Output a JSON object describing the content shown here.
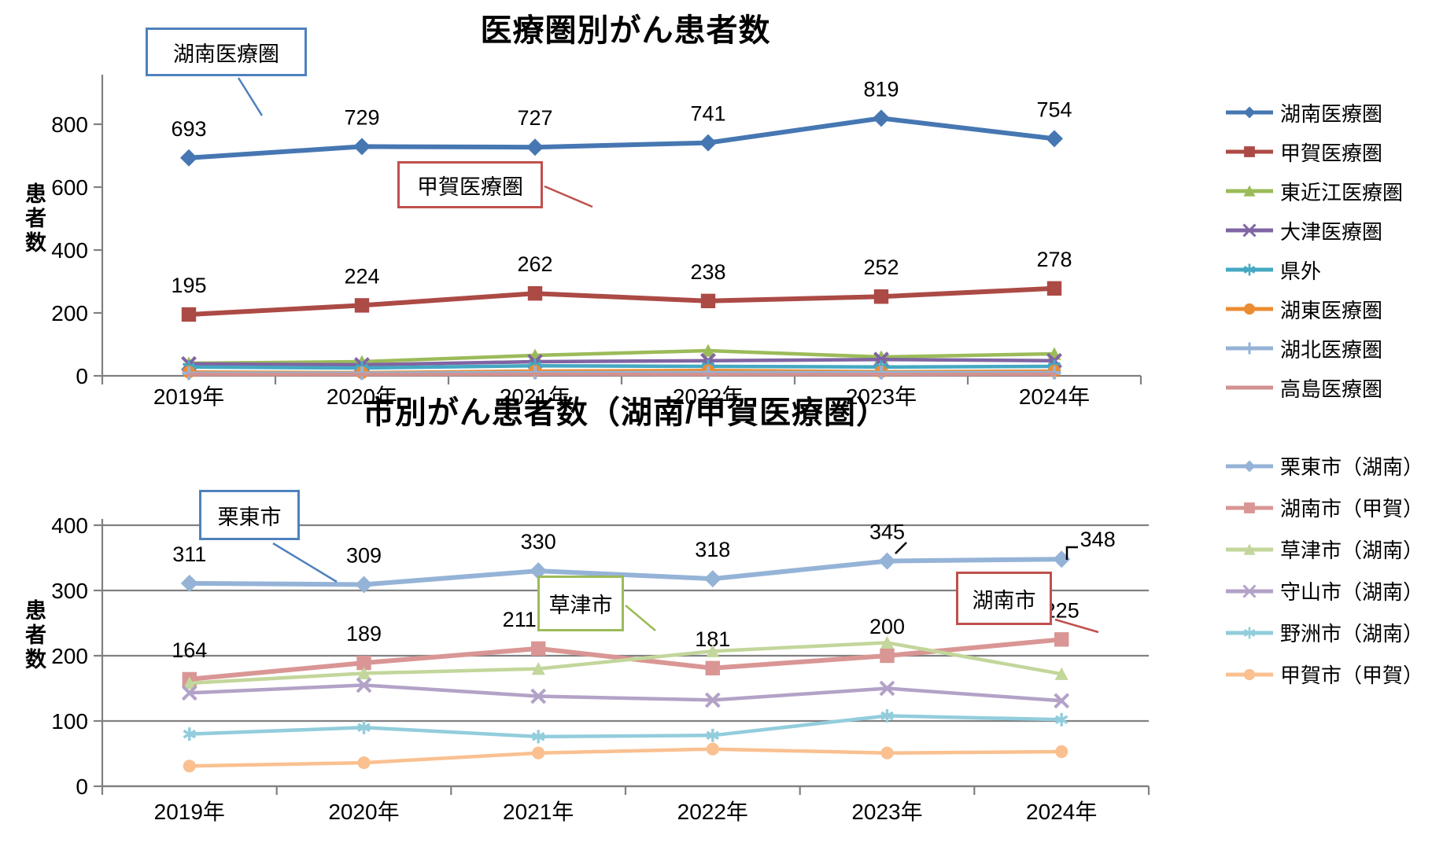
{
  "charts": [
    {
      "title": "医療圏別がん患者数",
      "y_axis_title": "患者数",
      "chart_data": {
        "type": "line",
        "categories": [
          "2019年",
          "2020年",
          "2021年",
          "2022年",
          "2023年",
          "2024年"
        ],
        "ylabel": "患者数",
        "ylim": [
          0,
          900
        ],
        "yticks": [
          0,
          200,
          400,
          600,
          800
        ],
        "grid": false,
        "legend_position": "right",
        "series": [
          {
            "name": "湖南医療圏",
            "color": "#4677B2",
            "marker": "diamond",
            "values": [
              693,
              729,
              727,
              741,
              819,
              754
            ],
            "data_labels": true,
            "main": true
          },
          {
            "name": "甲賀医療圏",
            "color": "#AC4A45",
            "marker": "square",
            "values": [
              195,
              224,
              262,
              238,
              252,
              278
            ],
            "data_labels": true,
            "main": true
          },
          {
            "name": "東近江医療圏",
            "color": "#9BBB59",
            "marker": "triangle",
            "values": [
              40,
              45,
              65,
              80,
              60,
              70
            ]
          },
          {
            "name": "大津医療圏",
            "color": "#8064A2",
            "marker": "x",
            "values": [
              38,
              35,
              45,
              48,
              52,
              48
            ]
          },
          {
            "name": "県外",
            "color": "#45A8C2",
            "marker": "asterisk",
            "values": [
              28,
              25,
              32,
              30,
              28,
              30
            ]
          },
          {
            "name": "湖東医療圏",
            "color": "#EC8C32",
            "marker": "circle",
            "values": [
              12,
              10,
              15,
              17,
              13,
              15
            ]
          },
          {
            "name": "湖北医療圏",
            "color": "#95B3D7",
            "marker": "plus",
            "values": [
              8,
              8,
              10,
              10,
              10,
              10
            ]
          },
          {
            "name": "高島医療圏",
            "color": "#D2928F",
            "marker": "none",
            "values": [
              4,
              4,
              5,
              4,
              4,
              5
            ]
          }
        ]
      },
      "annotations": [
        {
          "text": "湖南医療圏",
          "color": "#4F81BD"
        },
        {
          "text": "甲賀医療圏",
          "color": "#C0504D"
        }
      ]
    },
    {
      "title": "市別がん患者数（湖南/甲賀医療圏）",
      "y_axis_title": "患者数",
      "chart_data": {
        "type": "line",
        "categories": [
          "2019年",
          "2020年",
          "2021年",
          "2022年",
          "2023年",
          "2024年"
        ],
        "ylabel": "患者数",
        "ylim": [
          0,
          400
        ],
        "yticks": [
          0,
          100,
          200,
          300,
          400
        ],
        "grid": true,
        "legend_position": "right",
        "series": [
          {
            "name": "栗東市（湖南）",
            "color": "#95B3D7",
            "marker": "diamond",
            "values": [
              311,
              309,
              330,
              318,
              345,
              348
            ],
            "data_labels": true,
            "main": true,
            "label_offsets": {
              "5": [
                46,
                12
              ]
            }
          },
          {
            "name": "湖南市（甲賀）",
            "color": "#D99694",
            "marker": "square",
            "values": [
              164,
              189,
              211,
              181,
              200,
              225
            ],
            "data_labels": true,
            "main": true,
            "label_offsets": {
              "2": [
                -24,
                0
              ]
            }
          },
          {
            "name": "草津市（湖南）",
            "color": "#C3D69B",
            "marker": "triangle",
            "values": [
              158,
              173,
              180,
              207,
              220,
              172
            ]
          },
          {
            "name": "守山市（湖南）",
            "color": "#B3A2C7",
            "marker": "x",
            "values": [
              143,
              155,
              138,
              132,
              150,
              131
            ]
          },
          {
            "name": "野洲市（湖南）",
            "color": "#92CDDC",
            "marker": "asterisk",
            "values": [
              80,
              90,
              76,
              78,
              108,
              102
            ]
          },
          {
            "name": "甲賀市（甲賀）",
            "color": "#FAC090",
            "marker": "circle",
            "values": [
              31,
              36,
              51,
              57,
              51,
              53
            ]
          }
        ]
      },
      "annotations": [
        {
          "text": "栗東市",
          "color": "#4F81BD"
        },
        {
          "text": "草津市",
          "color": "#9BBB59"
        },
        {
          "text": "湖南市",
          "color": "#C0504D"
        }
      ]
    }
  ]
}
